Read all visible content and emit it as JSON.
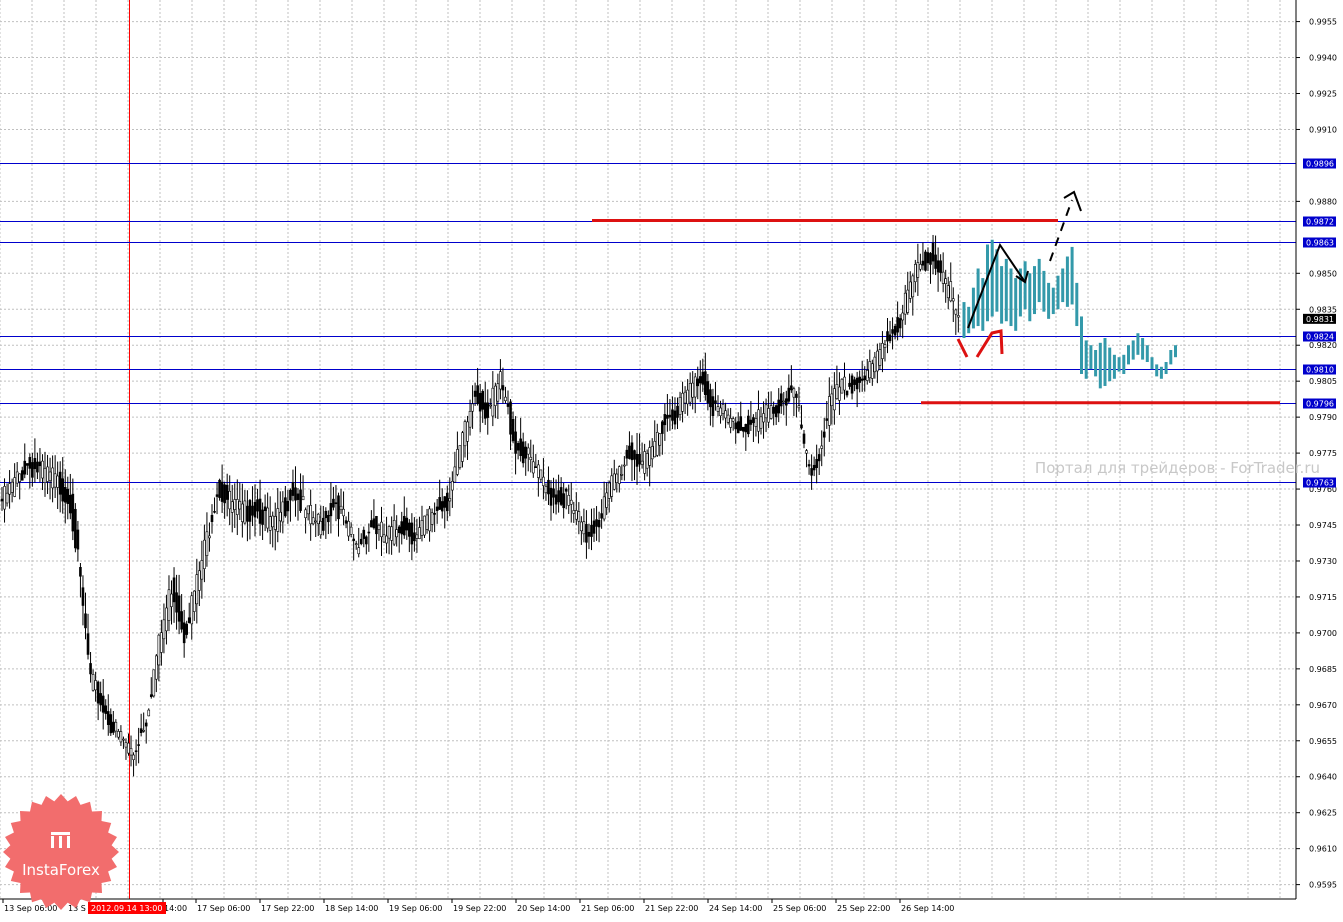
{
  "watermark": "Портал для трейдеров - ForTrader.ru",
  "brand": {
    "name": "InstaForex",
    "color": "#f26d6d"
  },
  "vline_label": "2012.09.14 13:00",
  "colors": {
    "level": "#0000cc",
    "bull": "#000000",
    "bear": "#000000",
    "projection": "#3399aa",
    "annotation_red": "#dd1111",
    "arrow": "#000000",
    "grid": "#c0c0c0",
    "vline": "#ff0000"
  },
  "chart_data": {
    "type": "candlestick",
    "ylim": [
      0.9589,
      0.9964
    ],
    "grid": true,
    "y_ticks": [
      "0.9955",
      "0.9940",
      "0.9925",
      "0.9910",
      "0.9880",
      "0.9850",
      "0.9835",
      "0.9820",
      "0.9805",
      "0.9790",
      "0.9775",
      "0.9760",
      "0.9745",
      "0.9730",
      "0.9715",
      "0.9700",
      "0.9685",
      "0.9670",
      "0.9655",
      "0.9640",
      "0.9625",
      "0.9610",
      "0.9595"
    ],
    "levels": [
      "0.9896",
      "0.9872",
      "0.9863",
      "0.9824",
      "0.9810",
      "0.9796",
      "0.9763"
    ],
    "current_price": "0.9831",
    "x_labels": [
      "13 Sep 06:00",
      "13 S",
      "14:00",
      "17 Sep 06:00",
      "17 Sep 22:00",
      "18 Sep 14:00",
      "19 Sep 06:00",
      "19 Sep 22:00",
      "20 Sep 14:00",
      "21 Sep 06:00",
      "21 Sep 22:00",
      "24 Sep 14:00",
      "25 Sep 06:00",
      "25 Sep 22:00",
      "26 Sep 14:00"
    ],
    "key_points": [
      [
        0,
        0.9755
      ],
      [
        10,
        0.977
      ],
      [
        20,
        0.9765
      ],
      [
        27,
        0.9755
      ],
      [
        30,
        0.973
      ],
      [
        35,
        0.968
      ],
      [
        44,
        0.966
      ],
      [
        52,
        0.965
      ],
      [
        57,
        0.9665
      ],
      [
        61,
        0.969
      ],
      [
        67,
        0.972
      ],
      [
        72,
        0.97
      ],
      [
        78,
        0.9725
      ],
      [
        85,
        0.976
      ],
      [
        95,
        0.975
      ],
      [
        100,
        0.9752
      ],
      [
        108,
        0.9745
      ],
      [
        115,
        0.976
      ],
      [
        120,
        0.975
      ],
      [
        126,
        0.9745
      ],
      [
        132,
        0.9755
      ],
      [
        140,
        0.9735
      ],
      [
        146,
        0.9745
      ],
      [
        152,
        0.974
      ],
      [
        158,
        0.9745
      ],
      [
        164,
        0.974
      ],
      [
        170,
        0.975
      ],
      [
        176,
        0.9755
      ],
      [
        182,
        0.978
      ],
      [
        187,
        0.98
      ],
      [
        192,
        0.9792
      ],
      [
        197,
        0.9805
      ],
      [
        203,
        0.9778
      ],
      [
        210,
        0.977
      ],
      [
        216,
        0.9758
      ],
      [
        224,
        0.9755
      ],
      [
        231,
        0.974
      ],
      [
        236,
        0.9748
      ],
      [
        241,
        0.9762
      ],
      [
        248,
        0.9775
      ],
      [
        255,
        0.977
      ],
      [
        261,
        0.9788
      ],
      [
        266,
        0.9792
      ],
      [
        271,
        0.98
      ],
      [
        276,
        0.9807
      ],
      [
        281,
        0.9795
      ],
      [
        286,
        0.979
      ],
      [
        292,
        0.9785
      ],
      [
        298,
        0.9788
      ],
      [
        304,
        0.9792
      ],
      [
        309,
        0.9797
      ],
      [
        313,
        0.98
      ],
      [
        316,
        0.9785
      ],
      [
        319,
        0.9765
      ],
      [
        322,
        0.977
      ],
      [
        327,
        0.9795
      ],
      [
        332,
        0.9802
      ],
      [
        338,
        0.9804
      ],
      [
        344,
        0.981
      ],
      [
        349,
        0.9822
      ],
      [
        355,
        0.983
      ],
      [
        358,
        0.9842
      ],
      [
        362,
        0.9852
      ],
      [
        367,
        0.9858
      ],
      [
        372,
        0.9846
      ],
      [
        375,
        0.9842
      ],
      [
        378,
        0.9828
      ]
    ],
    "projection": [
      [
        0.9823,
        0.9838
      ],
      [
        0.9825,
        0.9836
      ],
      [
        0.9827,
        0.9844
      ],
      [
        0.9828,
        0.9852
      ],
      [
        0.9826,
        0.9848
      ],
      [
        0.983,
        0.9862
      ],
      [
        0.9832,
        0.9864
      ],
      [
        0.9834,
        0.986
      ],
      [
        0.9829,
        0.9853
      ],
      [
        0.983,
        0.9856
      ],
      [
        0.9828,
        0.9852
      ],
      [
        0.9826,
        0.9848
      ],
      [
        0.9832,
        0.9852
      ],
      [
        0.9835,
        0.9855
      ],
      [
        0.983,
        0.985
      ],
      [
        0.9833,
        0.9853
      ],
      [
        0.9838,
        0.9856
      ],
      [
        0.9834,
        0.9851
      ],
      [
        0.9831,
        0.9846
      ],
      [
        0.9833,
        0.9844
      ],
      [
        0.9835,
        0.9849
      ],
      [
        0.9838,
        0.9852
      ],
      [
        0.9836,
        0.9857
      ],
      [
        0.9837,
        0.9861
      ],
      [
        0.9828,
        0.9846
      ],
      [
        0.9808,
        0.9832
      ],
      [
        0.9806,
        0.9822
      ],
      [
        0.981,
        0.982
      ],
      [
        0.9807,
        0.9818
      ],
      [
        0.9802,
        0.9821
      ],
      [
        0.9803,
        0.9823
      ],
      [
        0.9805,
        0.9819
      ],
      [
        0.9806,
        0.9816
      ],
      [
        0.9809,
        0.9815
      ],
      [
        0.9808,
        0.9816
      ],
      [
        0.9812,
        0.982
      ],
      [
        0.9814,
        0.9822
      ],
      [
        0.9816,
        0.9825
      ],
      [
        0.9814,
        0.9823
      ],
      [
        0.9813,
        0.982
      ],
      [
        0.981,
        0.9815
      ],
      [
        0.9807,
        0.9812
      ],
      [
        0.9806,
        0.9811
      ],
      [
        0.9808,
        0.9813
      ],
      [
        0.9812,
        0.9818
      ],
      [
        0.9815,
        0.982
      ]
    ]
  }
}
